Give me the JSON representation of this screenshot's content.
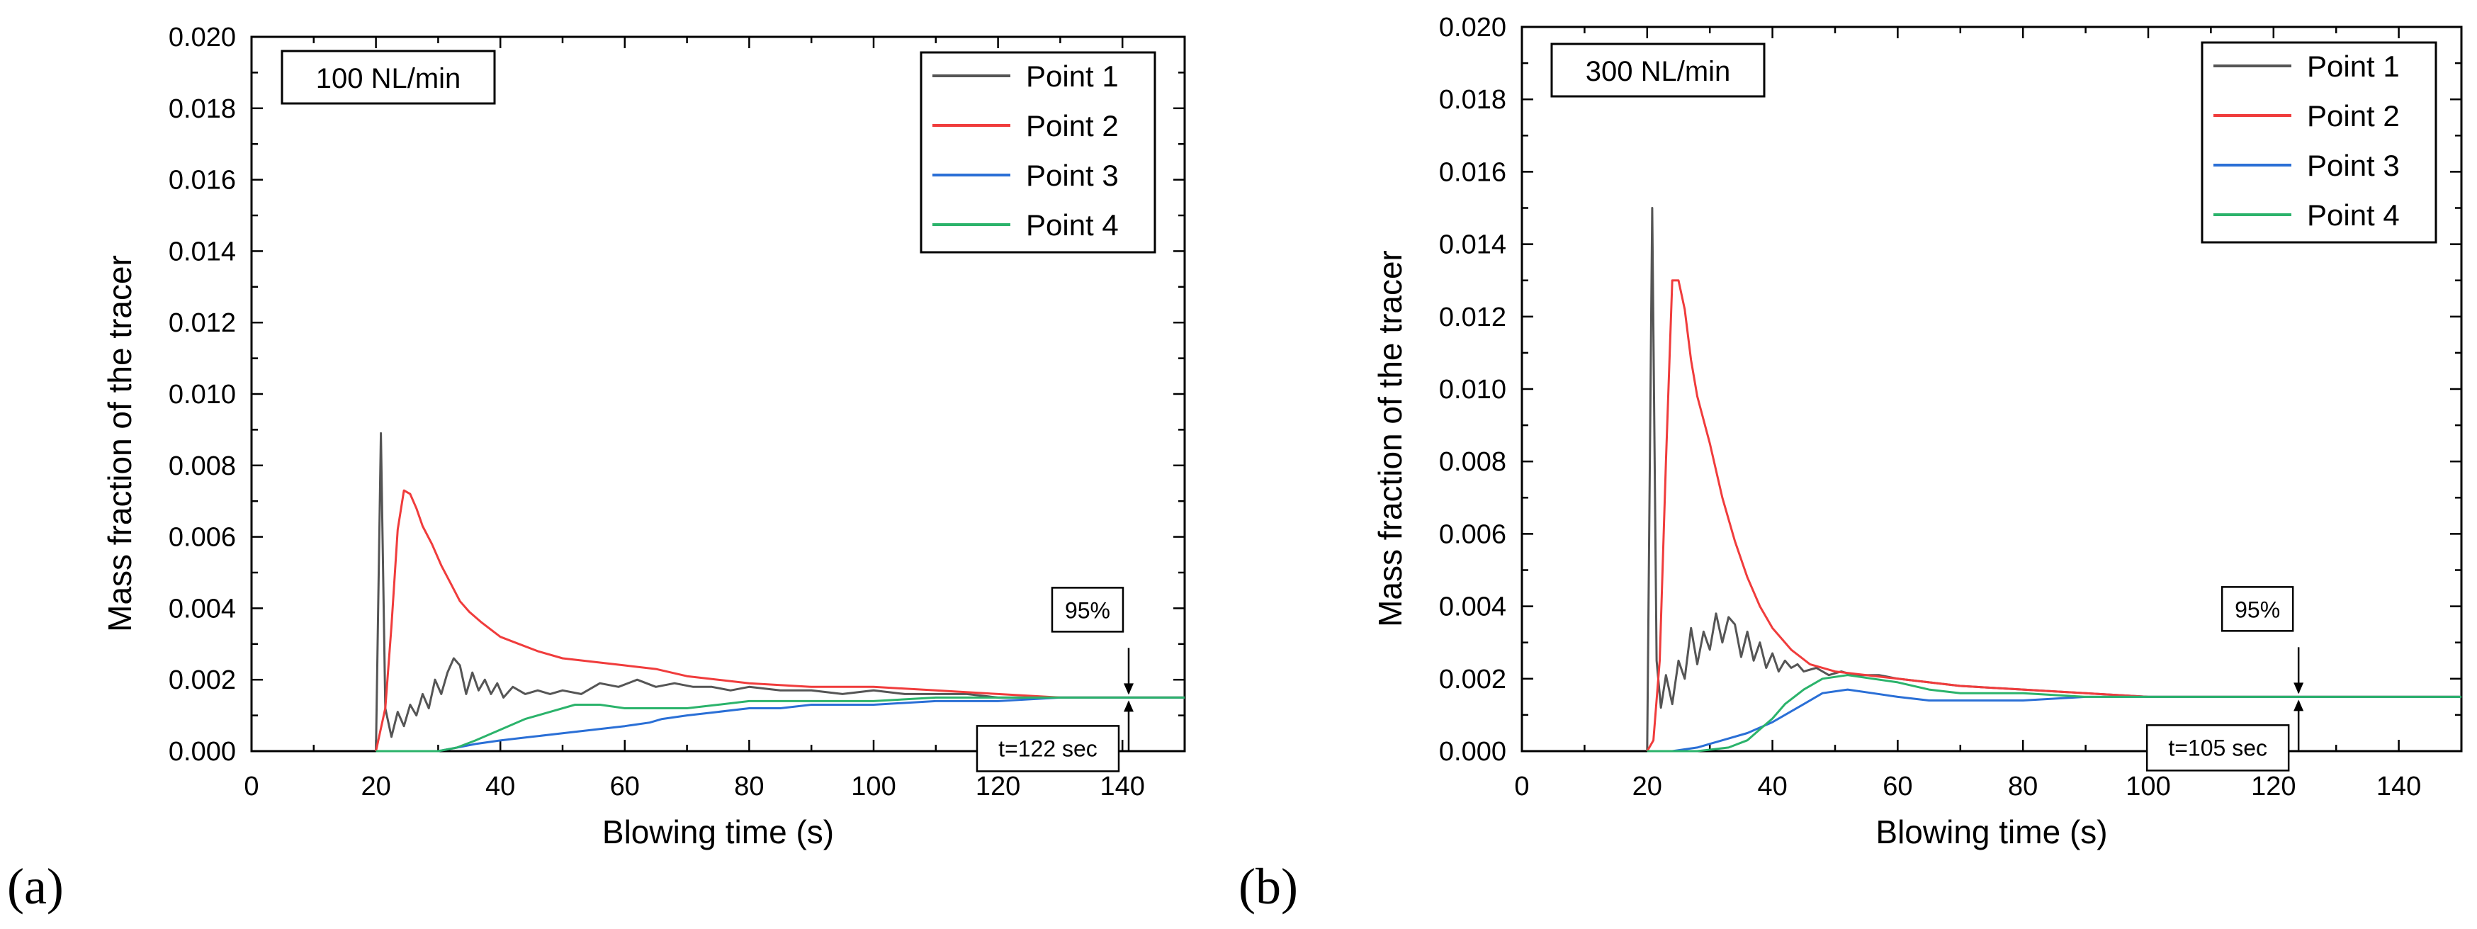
{
  "figure": {
    "panel_labels": [
      "(a)",
      "(b)"
    ]
  },
  "colors": {
    "point1": "#555555",
    "point2": "#f03c3c",
    "point3": "#2a6fd6",
    "point4": "#2bb36b"
  },
  "chart_data": [
    {
      "type": "line",
      "box_label": "100 NL/min",
      "xlabel": "Blowing time (s)",
      "ylabel": "Mass fraction of the tracer",
      "xlim": [
        0,
        150
      ],
      "ylim": [
        0,
        0.02
      ],
      "xticks": [
        "0",
        "20",
        "40",
        "60",
        "80",
        "100",
        "120",
        "140"
      ],
      "yticks": [
        "0.000",
        "0.002",
        "0.004",
        "0.006",
        "0.008",
        "0.010",
        "0.012",
        "0.014",
        "0.016",
        "0.018",
        "0.020"
      ],
      "legend": [
        "Point 1",
        "Point 2",
        "Point 3",
        "Point 4"
      ],
      "annotations": {
        "percent_label": "95%",
        "time_label": "t=122 sec",
        "marker_x": 141,
        "marker_y": 0.0015
      },
      "series": [
        {
          "name": "Point 1",
          "x": [
            20,
            20.8,
            21.5,
            22.5,
            23.5,
            24.5,
            25.5,
            26.5,
            27.5,
            28.5,
            29.5,
            30.5,
            31.5,
            32.5,
            33.5,
            34.5,
            35.5,
            36.5,
            37.5,
            38.5,
            39.5,
            40.5,
            42,
            44,
            46,
            48,
            50,
            53,
            56,
            59,
            62,
            65,
            68,
            71,
            74,
            77,
            80,
            85,
            90,
            95,
            100,
            105,
            110,
            115,
            120,
            125,
            130,
            135,
            140,
            145,
            150
          ],
          "y": [
            0,
            0.0089,
            0.0012,
            0.0004,
            0.0011,
            0.0007,
            0.0013,
            0.001,
            0.0016,
            0.0012,
            0.002,
            0.0016,
            0.0022,
            0.0026,
            0.0024,
            0.0016,
            0.0022,
            0.0017,
            0.002,
            0.0016,
            0.0019,
            0.0015,
            0.0018,
            0.0016,
            0.0017,
            0.0016,
            0.0017,
            0.0016,
            0.0019,
            0.0018,
            0.002,
            0.0018,
            0.0019,
            0.0018,
            0.0018,
            0.0017,
            0.0018,
            0.0017,
            0.0017,
            0.0016,
            0.0017,
            0.0016,
            0.0016,
            0.0016,
            0.0015,
            0.0015,
            0.0015,
            0.0015,
            0.0015,
            0.0015,
            0.0015
          ]
        },
        {
          "name": "Point 2",
          "x": [
            20,
            21.5,
            22.5,
            23.5,
            24.5,
            25.5,
            26.5,
            27.5,
            29,
            30.5,
            32,
            33.5,
            35,
            37,
            40,
            43,
            46,
            50,
            55,
            60,
            65,
            70,
            75,
            80,
            90,
            100,
            110,
            120,
            130,
            140,
            150
          ],
          "y": [
            0,
            0.0012,
            0.0035,
            0.0062,
            0.0073,
            0.0072,
            0.0068,
            0.0063,
            0.0058,
            0.0052,
            0.0047,
            0.0042,
            0.0039,
            0.0036,
            0.0032,
            0.003,
            0.0028,
            0.0026,
            0.0025,
            0.0024,
            0.0023,
            0.0021,
            0.002,
            0.0019,
            0.0018,
            0.0018,
            0.0017,
            0.0016,
            0.0015,
            0.0015,
            0.0015
          ]
        },
        {
          "name": "Point 3",
          "x": [
            20,
            25,
            30,
            33,
            36,
            40,
            45,
            50,
            55,
            60,
            64,
            66,
            70,
            75,
            80,
            85,
            90,
            95,
            100,
            110,
            120,
            130,
            140,
            150
          ],
          "y": [
            0,
            0,
            0,
            0.0001,
            0.0002,
            0.0003,
            0.0004,
            0.0005,
            0.0006,
            0.0007,
            0.0008,
            0.0009,
            0.001,
            0.0011,
            0.0012,
            0.0012,
            0.0013,
            0.0013,
            0.0013,
            0.0014,
            0.0014,
            0.0015,
            0.0015,
            0.0015
          ]
        },
        {
          "name": "Point 4",
          "x": [
            20,
            25,
            30,
            33,
            36,
            40,
            44,
            48,
            52,
            56,
            60,
            65,
            70,
            75,
            80,
            90,
            100,
            110,
            120,
            130,
            140,
            150
          ],
          "y": [
            0,
            0,
            0,
            0.0001,
            0.0003,
            0.0006,
            0.0009,
            0.0011,
            0.0013,
            0.0013,
            0.0012,
            0.0012,
            0.0012,
            0.0013,
            0.0014,
            0.0014,
            0.0014,
            0.0015,
            0.0015,
            0.0015,
            0.0015,
            0.0015
          ]
        }
      ]
    },
    {
      "type": "line",
      "box_label": "300 NL/min",
      "xlabel": "Blowing time (s)",
      "ylabel": "Mass fraction of the tracer",
      "xlim": [
        0,
        150
      ],
      "ylim": [
        0,
        0.02
      ],
      "xticks": [
        "0",
        "20",
        "40",
        "60",
        "80",
        "100",
        "120",
        "140"
      ],
      "yticks": [
        "0.000",
        "0.002",
        "0.004",
        "0.006",
        "0.008",
        "0.010",
        "0.012",
        "0.014",
        "0.016",
        "0.018",
        "0.020"
      ],
      "legend": [
        "Point 1",
        "Point 2",
        "Point 3",
        "Point 4"
      ],
      "annotations": {
        "percent_label": "95%",
        "time_label": "t=105 sec",
        "marker_x": 124,
        "marker_y": 0.0015
      },
      "series": [
        {
          "name": "Point 1",
          "x": [
            20,
            20.8,
            21.5,
            22.2,
            23,
            24,
            25,
            26,
            27,
            28,
            29,
            30,
            31,
            32,
            33,
            34,
            35,
            36,
            37,
            38,
            39,
            40,
            41,
            42,
            43,
            44,
            45,
            47,
            49,
            51,
            53,
            55,
            57,
            60,
            65,
            70,
            80,
            90,
            100,
            110,
            120,
            130,
            140,
            150
          ],
          "y": [
            0,
            0.015,
            0.0025,
            0.0012,
            0.0021,
            0.0013,
            0.0025,
            0.002,
            0.0034,
            0.0024,
            0.0033,
            0.0028,
            0.0038,
            0.003,
            0.0037,
            0.0035,
            0.0026,
            0.0033,
            0.0025,
            0.003,
            0.0023,
            0.0027,
            0.0022,
            0.0025,
            0.0023,
            0.0024,
            0.0022,
            0.0023,
            0.0021,
            0.0022,
            0.0021,
            0.0021,
            0.0021,
            0.002,
            0.0019,
            0.0018,
            0.0017,
            0.0016,
            0.0015,
            0.0015,
            0.0015,
            0.0015,
            0.0015,
            0.0015
          ]
        },
        {
          "name": "Point 2",
          "x": [
            20,
            21,
            22,
            23,
            24,
            25,
            26,
            27,
            28,
            30,
            32,
            34,
            36,
            38,
            40,
            43,
            46,
            50,
            55,
            60,
            70,
            80,
            90,
            100,
            120,
            150
          ],
          "y": [
            0,
            0.0003,
            0.0025,
            0.008,
            0.013,
            0.013,
            0.0122,
            0.0108,
            0.0098,
            0.0085,
            0.007,
            0.0058,
            0.0048,
            0.004,
            0.0034,
            0.0028,
            0.0024,
            0.0022,
            0.0021,
            0.002,
            0.0018,
            0.0017,
            0.0016,
            0.0015,
            0.0015,
            0.0015
          ]
        },
        {
          "name": "Point 3",
          "x": [
            20,
            24,
            28,
            32,
            36,
            40,
            44,
            48,
            52,
            56,
            60,
            65,
            70,
            80,
            90,
            100,
            120,
            150
          ],
          "y": [
            0,
            0,
            0.0001,
            0.0003,
            0.0005,
            0.0008,
            0.0012,
            0.0016,
            0.0017,
            0.0016,
            0.0015,
            0.0014,
            0.0014,
            0.0014,
            0.0015,
            0.0015,
            0.0015,
            0.0015
          ]
        },
        {
          "name": "Point 4",
          "x": [
            20,
            28,
            33,
            36,
            38,
            40,
            42,
            45,
            48,
            52,
            56,
            60,
            65,
            70,
            80,
            90,
            100,
            120,
            150
          ],
          "y": [
            0,
            0,
            0.0001,
            0.0003,
            0.0006,
            0.0009,
            0.0013,
            0.0017,
            0.002,
            0.0021,
            0.002,
            0.0019,
            0.0017,
            0.0016,
            0.0016,
            0.0015,
            0.0015,
            0.0015,
            0.0015
          ]
        }
      ]
    }
  ]
}
